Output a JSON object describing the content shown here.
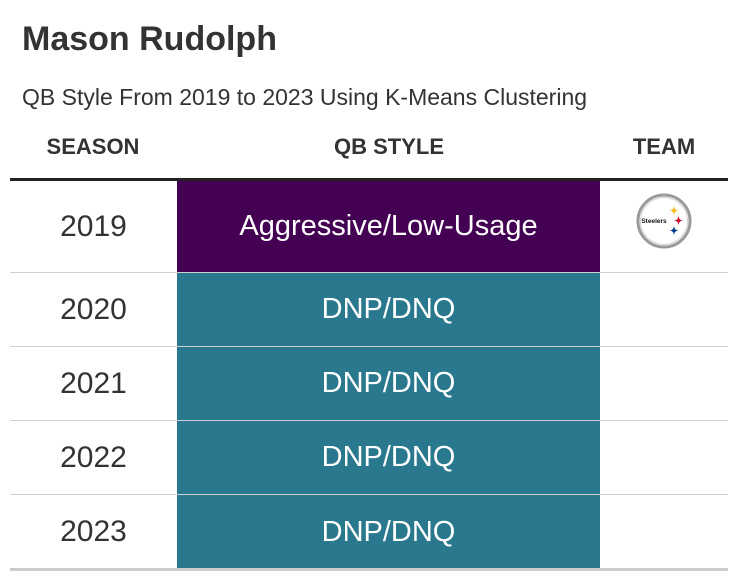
{
  "title": "Mason Rudolph",
  "subtitle": "QB Style From 2019 to 2023 Using K-Means Clustering",
  "columns": {
    "season": "SEASON",
    "qb_style": "QB STYLE",
    "team": "TEAM"
  },
  "colors": {
    "aggressive_low_usage": "#440154",
    "dnp_dnq": "#2a788e"
  },
  "rows": [
    {
      "season": "2019",
      "qb_style": "Aggressive/Low-Usage",
      "style_color": "#440154",
      "team_logo": "steelers-logo-icon",
      "logo_text": "Steelers"
    },
    {
      "season": "2020",
      "qb_style": "DNP/DNQ",
      "style_color": "#2a788e"
    },
    {
      "season": "2021",
      "qb_style": "DNP/DNQ",
      "style_color": "#2a788e"
    },
    {
      "season": "2022",
      "qb_style": "DNP/DNQ",
      "style_color": "#2a788e"
    },
    {
      "season": "2023",
      "qb_style": "DNP/DNQ",
      "style_color": "#2a788e"
    }
  ]
}
